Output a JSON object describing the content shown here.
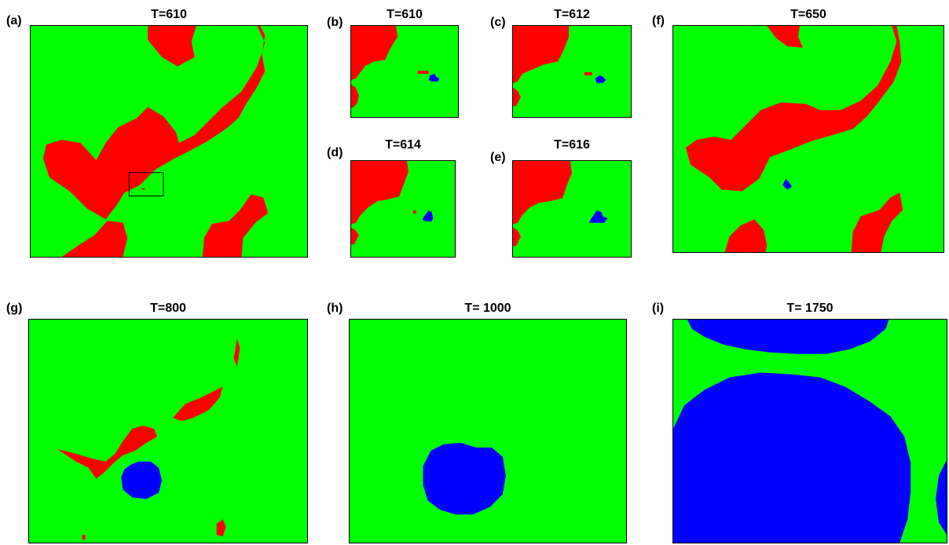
{
  "colors": {
    "background_phase": "#00ff00",
    "red_phase": "#ff0000",
    "blue_phase": "#0000ff"
  },
  "panels": [
    {
      "label": "(a)",
      "title": "T=610"
    },
    {
      "label": "(b)",
      "title": "T=610"
    },
    {
      "label": "(c)",
      "title": "T=612"
    },
    {
      "label": "(d)",
      "title": "T=614"
    },
    {
      "label": "(e)",
      "title": "T=616"
    },
    {
      "label": "(f)",
      "title": "T=650"
    },
    {
      "label": "(g)",
      "title": "T=800"
    },
    {
      "label": "(h)",
      "title": "T= 1000"
    },
    {
      "label": "(i)",
      "title": "T= 1750"
    }
  ]
}
